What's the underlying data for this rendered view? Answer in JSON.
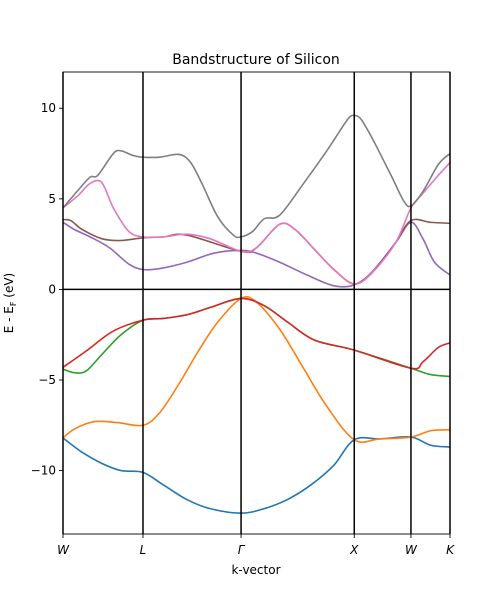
{
  "chart_data": {
    "type": "line",
    "title": "Bandstructure of Silicon",
    "xlabel": "k-vector",
    "ylabel": "E - E",
    "ylabel_sub": "F",
    "ylabel_unit": " (eV)",
    "ylim": [
      -13.5,
      12.0
    ],
    "xlim": [
      0,
      1.0
    ],
    "yticks": [
      10,
      5,
      0,
      -5,
      -10
    ],
    "yticklabels": [
      "10",
      "5",
      "0",
      "−5",
      "−10"
    ],
    "kpoints": [
      {
        "label": "W",
        "x": 0.0
      },
      {
        "label": "L",
        "x": 0.2067
      },
      {
        "label": "Γ",
        "x": 0.4601
      },
      {
        "label": "X",
        "x": 0.7526
      },
      {
        "label": "W",
        "x": 0.8991
      },
      {
        "label": "K",
        "x": 1.0
      }
    ],
    "fermi_level": 0,
    "series": [
      {
        "color": "#1f77b4",
        "points": [
          [
            0.0,
            -8.2
          ],
          [
            0.05,
            -9.0
          ],
          [
            0.1,
            -9.6
          ],
          [
            0.15,
            -10.0
          ],
          [
            0.2067,
            -10.1
          ],
          [
            0.26,
            -10.8
          ],
          [
            0.32,
            -11.6
          ],
          [
            0.38,
            -12.1
          ],
          [
            0.4601,
            -12.35
          ],
          [
            0.52,
            -12.1
          ],
          [
            0.58,
            -11.6
          ],
          [
            0.64,
            -10.8
          ],
          [
            0.7,
            -9.7
          ],
          [
            0.7526,
            -8.3
          ],
          [
            0.82,
            -8.25
          ],
          [
            0.8991,
            -8.15
          ],
          [
            0.95,
            -8.6
          ],
          [
            1.0,
            -8.7
          ]
        ]
      },
      {
        "color": "#ff7f0e",
        "points": [
          [
            0.0,
            -8.2
          ],
          [
            0.03,
            -7.7
          ],
          [
            0.08,
            -7.3
          ],
          [
            0.14,
            -7.35
          ],
          [
            0.2067,
            -7.5
          ],
          [
            0.25,
            -6.8
          ],
          [
            0.3,
            -5.2
          ],
          [
            0.35,
            -3.4
          ],
          [
            0.4,
            -1.8
          ],
          [
            0.4601,
            -0.5
          ],
          [
            0.5,
            -0.7
          ],
          [
            0.56,
            -2.2
          ],
          [
            0.62,
            -4.3
          ],
          [
            0.68,
            -6.4
          ],
          [
            0.7526,
            -8.3
          ],
          [
            0.82,
            -8.25
          ],
          [
            0.8991,
            -8.15
          ],
          [
            0.95,
            -7.8
          ],
          [
            1.0,
            -7.75
          ]
        ]
      },
      {
        "color": "#2ca02c",
        "points": [
          [
            0.0,
            -4.4
          ],
          [
            0.03,
            -4.6
          ],
          [
            0.06,
            -4.5
          ],
          [
            0.1,
            -3.6
          ],
          [
            0.15,
            -2.5
          ],
          [
            0.2067,
            -1.7
          ],
          [
            0.26,
            -1.6
          ],
          [
            0.32,
            -1.4
          ],
          [
            0.38,
            -1.0
          ],
          [
            0.4601,
            -0.5
          ],
          [
            0.52,
            -0.9
          ],
          [
            0.58,
            -1.8
          ],
          [
            0.65,
            -2.8
          ],
          [
            0.7526,
            -3.35
          ],
          [
            0.8991,
            -4.35
          ],
          [
            0.95,
            -4.7
          ],
          [
            1.0,
            -4.8
          ]
        ]
      },
      {
        "color": "#d62728",
        "points": [
          [
            0.0,
            -4.3
          ],
          [
            0.06,
            -3.4
          ],
          [
            0.13,
            -2.3
          ],
          [
            0.2067,
            -1.7
          ],
          [
            0.26,
            -1.6
          ],
          [
            0.32,
            -1.4
          ],
          [
            0.38,
            -1.0
          ],
          [
            0.4601,
            -0.5
          ],
          [
            0.52,
            -0.9
          ],
          [
            0.58,
            -1.8
          ],
          [
            0.65,
            -2.8
          ],
          [
            0.7526,
            -3.35
          ],
          [
            0.8991,
            -4.35
          ],
          [
            0.93,
            -4.0
          ],
          [
            0.97,
            -3.2
          ],
          [
            1.0,
            -2.95
          ]
        ]
      },
      {
        "color": "#9467bd",
        "points": [
          [
            0.0,
            3.7
          ],
          [
            0.03,
            3.3
          ],
          [
            0.07,
            2.9
          ],
          [
            0.12,
            2.3
          ],
          [
            0.17,
            1.4
          ],
          [
            0.2067,
            1.1
          ],
          [
            0.25,
            1.15
          ],
          [
            0.32,
            1.5
          ],
          [
            0.39,
            2.0
          ],
          [
            0.4601,
            2.15
          ],
          [
            0.5,
            2.0
          ],
          [
            0.56,
            1.5
          ],
          [
            0.63,
            0.8
          ],
          [
            0.7,
            0.2
          ],
          [
            0.7526,
            0.25
          ],
          [
            0.8,
            1.0
          ],
          [
            0.86,
            2.6
          ],
          [
            0.8991,
            3.7
          ],
          [
            0.93,
            2.8
          ],
          [
            0.96,
            1.5
          ],
          [
            1.0,
            0.8
          ]
        ]
      },
      {
        "color": "#8c564b",
        "points": [
          [
            0.0,
            3.85
          ],
          [
            0.02,
            3.8
          ],
          [
            0.05,
            3.3
          ],
          [
            0.1,
            2.8
          ],
          [
            0.15,
            2.7
          ],
          [
            0.2067,
            2.85
          ],
          [
            0.26,
            2.9
          ],
          [
            0.32,
            3.0
          ],
          [
            0.4601,
            2.1
          ],
          [
            0.5,
            2.3
          ],
          [
            0.56,
            3.6
          ],
          [
            0.6,
            3.3
          ],
          [
            0.65,
            2.2
          ],
          [
            0.7,
            1.1
          ],
          [
            0.7526,
            0.3
          ],
          [
            0.8,
            0.95
          ],
          [
            0.86,
            2.6
          ],
          [
            0.8991,
            3.8
          ],
          [
            0.95,
            3.7
          ],
          [
            1.0,
            3.65
          ]
        ]
      },
      {
        "color": "#e377c2",
        "points": [
          [
            0.0,
            4.5
          ],
          [
            0.04,
            5.2
          ],
          [
            0.07,
            5.85
          ],
          [
            0.1,
            5.9
          ],
          [
            0.13,
            4.5
          ],
          [
            0.17,
            3.2
          ],
          [
            0.2067,
            2.9
          ],
          [
            0.26,
            2.9
          ],
          [
            0.32,
            3.05
          ],
          [
            0.38,
            2.8
          ],
          [
            0.4601,
            2.1
          ],
          [
            0.5,
            2.3
          ],
          [
            0.56,
            3.6
          ],
          [
            0.6,
            3.3
          ],
          [
            0.65,
            2.2
          ],
          [
            0.7,
            1.1
          ],
          [
            0.7526,
            0.3
          ],
          [
            0.8,
            0.95
          ],
          [
            0.86,
            2.6
          ],
          [
            0.8991,
            4.5
          ],
          [
            0.93,
            5.3
          ],
          [
            0.97,
            6.3
          ],
          [
            1.0,
            7.0
          ]
        ]
      },
      {
        "color": "#7f7f7f",
        "points": [
          [
            0.0,
            4.5
          ],
          [
            0.04,
            5.5
          ],
          [
            0.07,
            6.2
          ],
          [
            0.09,
            6.3
          ],
          [
            0.13,
            7.5
          ],
          [
            0.15,
            7.65
          ],
          [
            0.18,
            7.4
          ],
          [
            0.2067,
            7.3
          ],
          [
            0.25,
            7.3
          ],
          [
            0.3,
            7.45
          ],
          [
            0.33,
            7.0
          ],
          [
            0.36,
            5.8
          ],
          [
            0.4,
            4.0
          ],
          [
            0.44,
            3.0
          ],
          [
            0.4601,
            2.9
          ],
          [
            0.49,
            3.2
          ],
          [
            0.52,
            3.9
          ],
          [
            0.56,
            4.1
          ],
          [
            0.62,
            5.8
          ],
          [
            0.68,
            7.6
          ],
          [
            0.72,
            8.9
          ],
          [
            0.74,
            9.5
          ],
          [
            0.7526,
            9.6
          ],
          [
            0.77,
            9.4
          ],
          [
            0.8,
            8.3
          ],
          [
            0.85,
            6.2
          ],
          [
            0.88,
            4.9
          ],
          [
            0.8991,
            4.6
          ],
          [
            0.93,
            5.4
          ],
          [
            0.97,
            6.9
          ],
          [
            1.0,
            7.5
          ]
        ]
      }
    ]
  }
}
